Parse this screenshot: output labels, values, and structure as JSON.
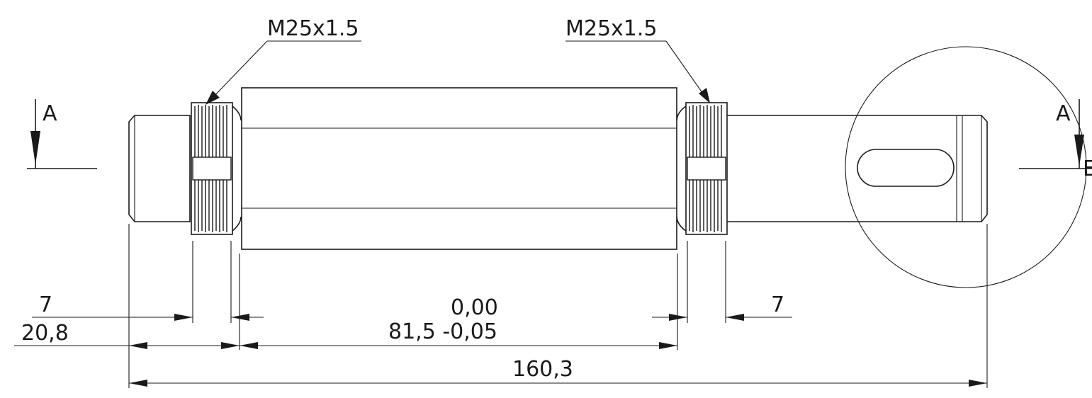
{
  "thread_callouts": {
    "left": "M25x1.5",
    "right": "M25x1.5"
  },
  "section_labels": {
    "left": "A",
    "right": "A",
    "right_cut": "E"
  },
  "dimensions": {
    "left_thread_width": "7",
    "left_shoulder": "20,8",
    "center_tol_upper": "0,00",
    "center_length": "81,5 -0,05",
    "right_thread_width": "7",
    "overall_length": "160,3"
  }
}
